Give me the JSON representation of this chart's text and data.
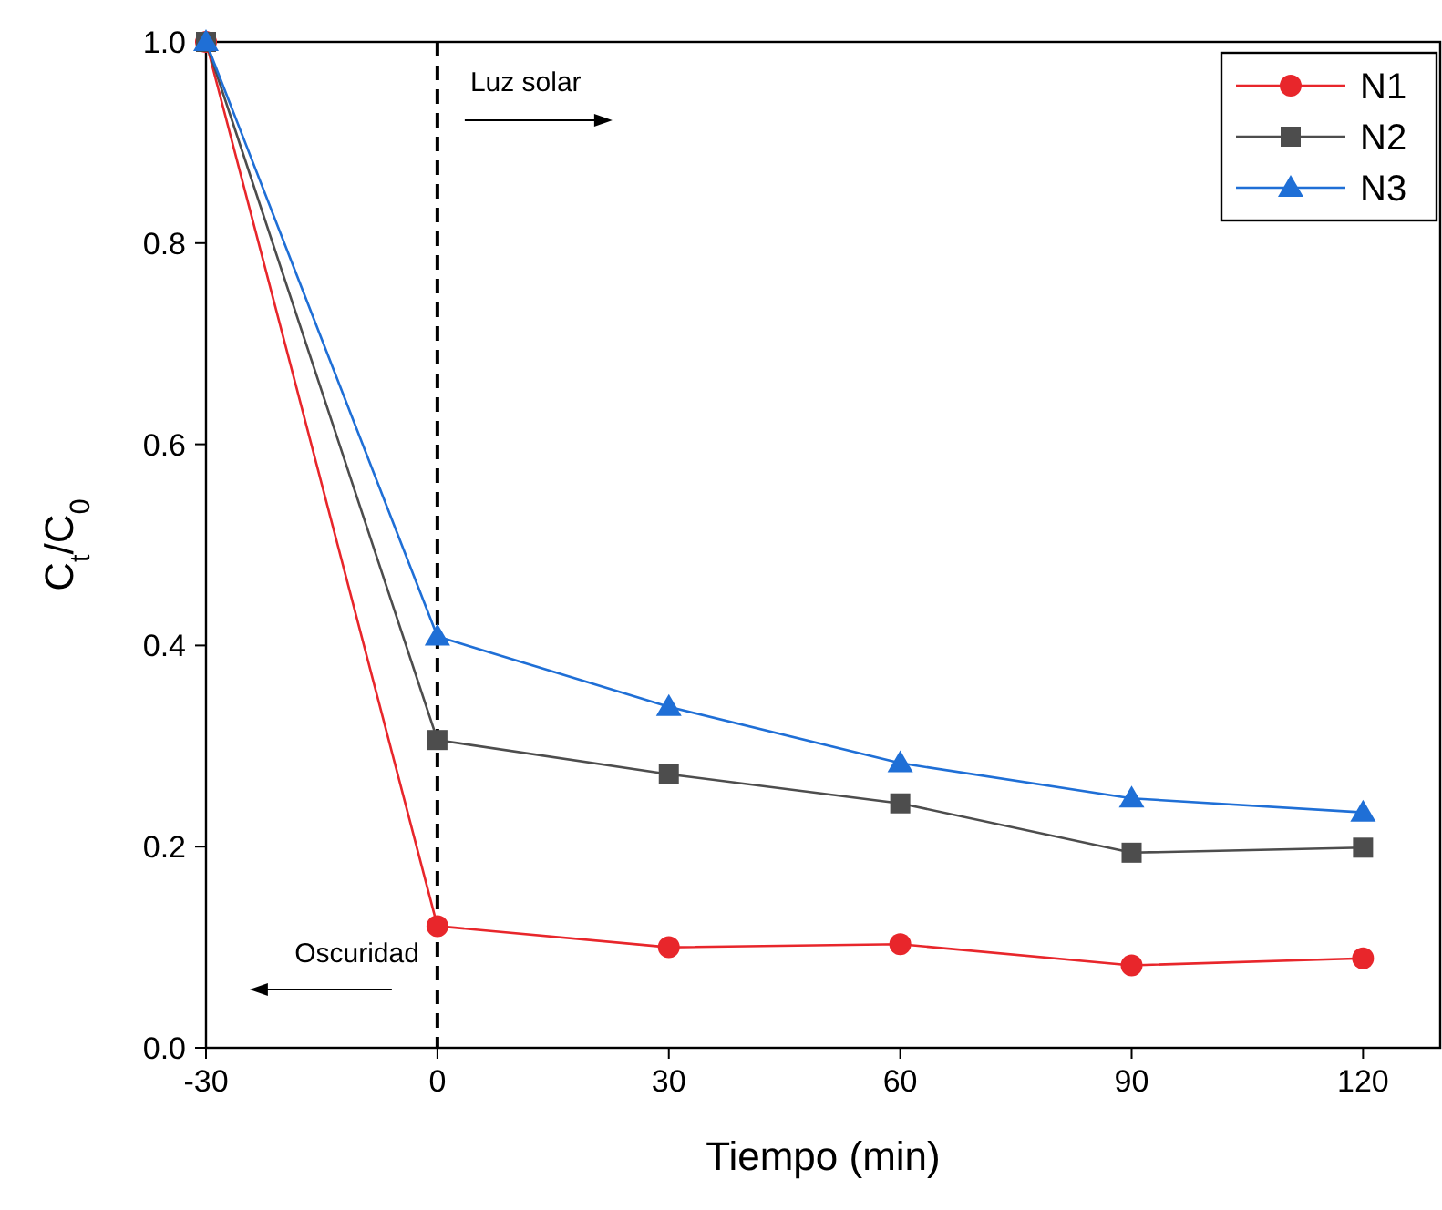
{
  "chart_data": {
    "type": "line",
    "xlabel": "Tiempo (min)",
    "ylabel": "C$_{t}$/C$_{0}$",
    "x": [
      -30,
      0,
      30,
      60,
      90,
      120
    ],
    "series": [
      {
        "name": "N1",
        "color": "#e8262b",
        "values": [
          1.0,
          0.121,
          0.1,
          0.103,
          0.082,
          0.089
        ],
        "marker": "circle"
      },
      {
        "name": "N2",
        "color": "#4d4d4d",
        "values": [
          1.0,
          0.306,
          0.272,
          0.243,
          0.194,
          0.199
        ],
        "marker": "square"
      },
      {
        "name": "N3",
        "color": "#1f6fd6",
        "values": [
          1.0,
          0.409,
          0.339,
          0.283,
          0.248,
          0.234
        ],
        "marker": "triangle"
      }
    ],
    "xlim": [
      -30,
      130
    ],
    "ylim": [
      0,
      1
    ],
    "xticks": [
      -30,
      0,
      30,
      60,
      90,
      120
    ],
    "yticks": [
      {
        "value": 0,
        "label": "0.0"
      },
      {
        "value": 0.2,
        "label": "0.2"
      },
      {
        "value": 0.4,
        "label": "0.4"
      },
      {
        "value": 0.6,
        "label": "0.6"
      },
      {
        "value": 0.8,
        "label": "0.8"
      },
      {
        "value": 1,
        "label": "1.0"
      }
    ],
    "ref_lines": [
      {
        "axis": "x",
        "value": 0,
        "line_style": "dashed",
        "color": "#000000"
      }
    ],
    "annotations": [
      "Luz solar",
      "Oscuridad"
    ],
    "legend": "top right",
    "grid": false,
    "line_style": "solid"
  }
}
